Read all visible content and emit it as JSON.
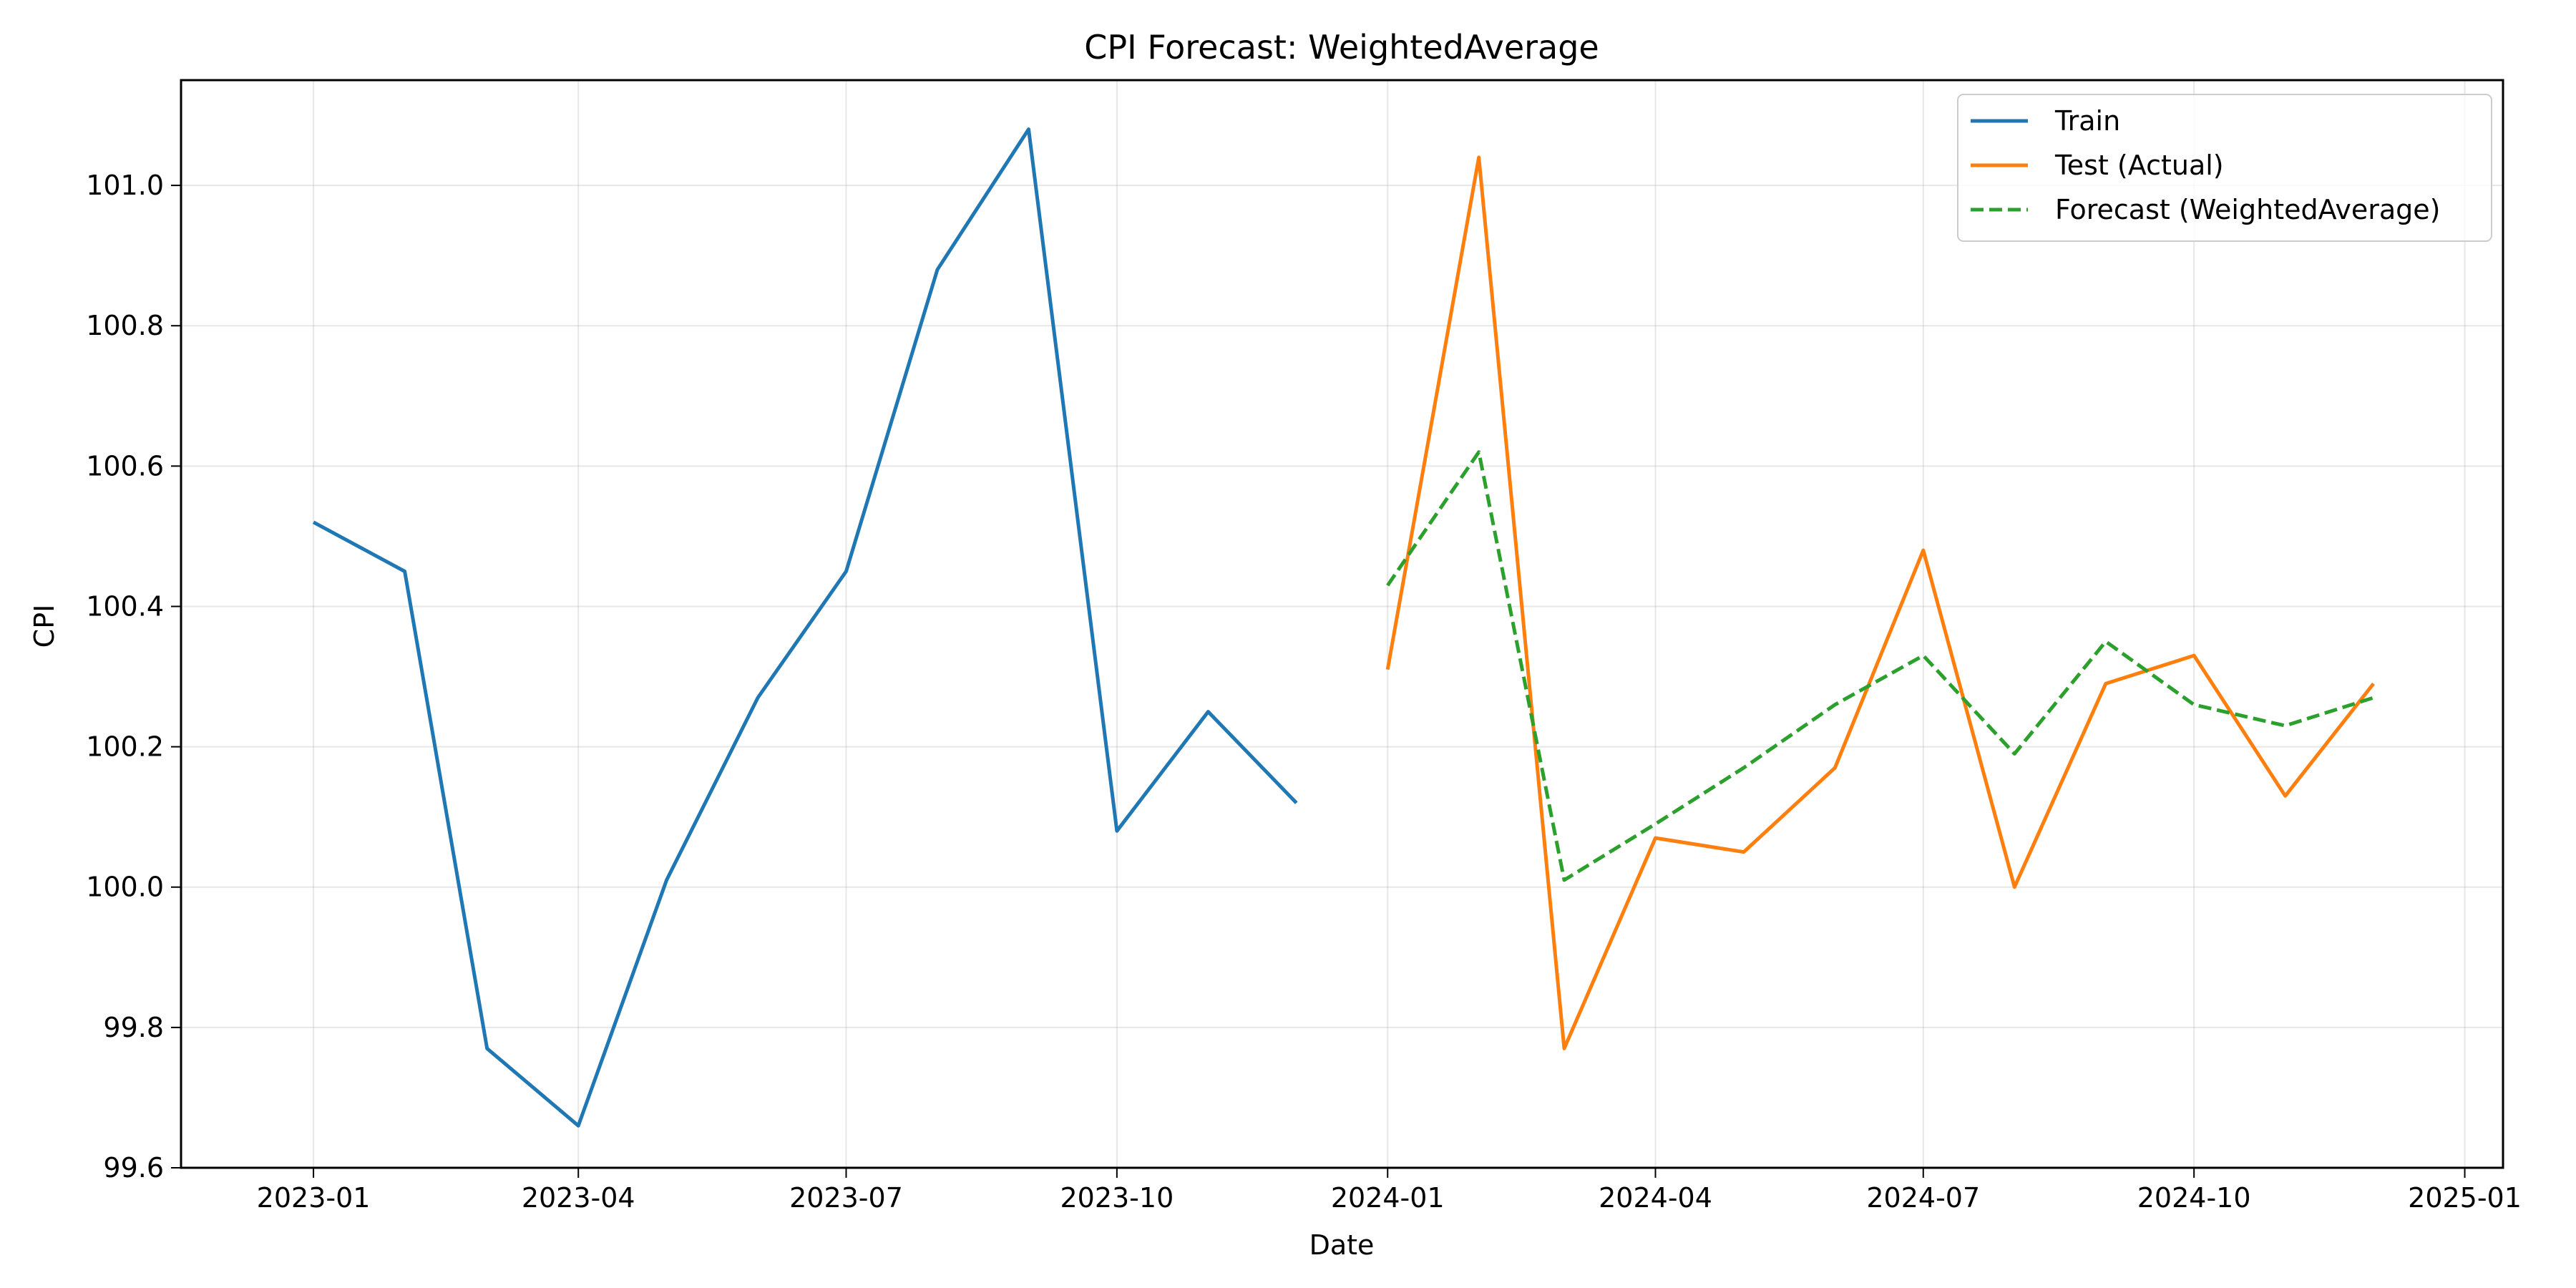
{
  "chart_data": {
    "type": "line",
    "title": "CPI Forecast: WeightedAverage",
    "xlabel": "Date",
    "ylabel": "CPI",
    "grid": true,
    "legend_position": "top-right",
    "xlim": [
      "2022-11-17",
      "2025-01-14"
    ],
    "ylim": [
      99.6,
      101.15
    ],
    "x_ticks": [
      {
        "date": "2023-01-01",
        "label": "2023-01"
      },
      {
        "date": "2023-04-01",
        "label": "2023-04"
      },
      {
        "date": "2023-07-01",
        "label": "2023-07"
      },
      {
        "date": "2023-10-01",
        "label": "2023-10"
      },
      {
        "date": "2024-01-01",
        "label": "2024-01"
      },
      {
        "date": "2024-04-01",
        "label": "2024-04"
      },
      {
        "date": "2024-07-01",
        "label": "2024-07"
      },
      {
        "date": "2024-10-01",
        "label": "2024-10"
      },
      {
        "date": "2025-01-01",
        "label": "2025-01"
      }
    ],
    "y_ticks": [
      {
        "value": 99.6,
        "label": "99.6"
      },
      {
        "value": 99.8,
        "label": "99.8"
      },
      {
        "value": 100.0,
        "label": "100.0"
      },
      {
        "value": 100.2,
        "label": "100.2"
      },
      {
        "value": 100.4,
        "label": "100.4"
      },
      {
        "value": 100.6,
        "label": "100.6"
      },
      {
        "value": 100.8,
        "label": "100.8"
      },
      {
        "value": 101.0,
        "label": "101.0"
      }
    ],
    "series": [
      {
        "name": "Train",
        "color": "#1f77b4",
        "style": "solid",
        "x": [
          "2023-01-01",
          "2023-02-01",
          "2023-03-01",
          "2023-04-01",
          "2023-05-01",
          "2023-06-01",
          "2023-07-01",
          "2023-08-01",
          "2023-09-01",
          "2023-10-01",
          "2023-11-01",
          "2023-12-01"
        ],
        "y": [
          100.52,
          100.45,
          99.77,
          99.66,
          100.01,
          100.27,
          100.45,
          100.88,
          101.08,
          100.08,
          100.25,
          100.12
        ]
      },
      {
        "name": "Test (Actual)",
        "color": "#ff7f0e",
        "style": "solid",
        "x": [
          "2024-01-01",
          "2024-02-01",
          "2024-03-01",
          "2024-04-01",
          "2024-05-01",
          "2024-06-01",
          "2024-07-01",
          "2024-08-01",
          "2024-09-01",
          "2024-10-01",
          "2024-11-01",
          "2024-12-01"
        ],
        "y": [
          100.31,
          101.04,
          99.77,
          100.07,
          100.05,
          100.17,
          100.48,
          100.0,
          100.29,
          100.33,
          100.13,
          100.29
        ]
      },
      {
        "name": "Forecast (WeightedAverage)",
        "color": "#2ca02c",
        "style": "dashed",
        "x": [
          "2024-01-01",
          "2024-02-01",
          "2024-03-01",
          "2024-04-01",
          "2024-05-01",
          "2024-06-01",
          "2024-07-01",
          "2024-08-01",
          "2024-09-01",
          "2024-10-01",
          "2024-11-01",
          "2024-12-01"
        ],
        "y": [
          100.43,
          100.62,
          100.01,
          100.09,
          100.17,
          100.26,
          100.33,
          100.19,
          100.35,
          100.26,
          100.23,
          100.27
        ]
      }
    ]
  }
}
